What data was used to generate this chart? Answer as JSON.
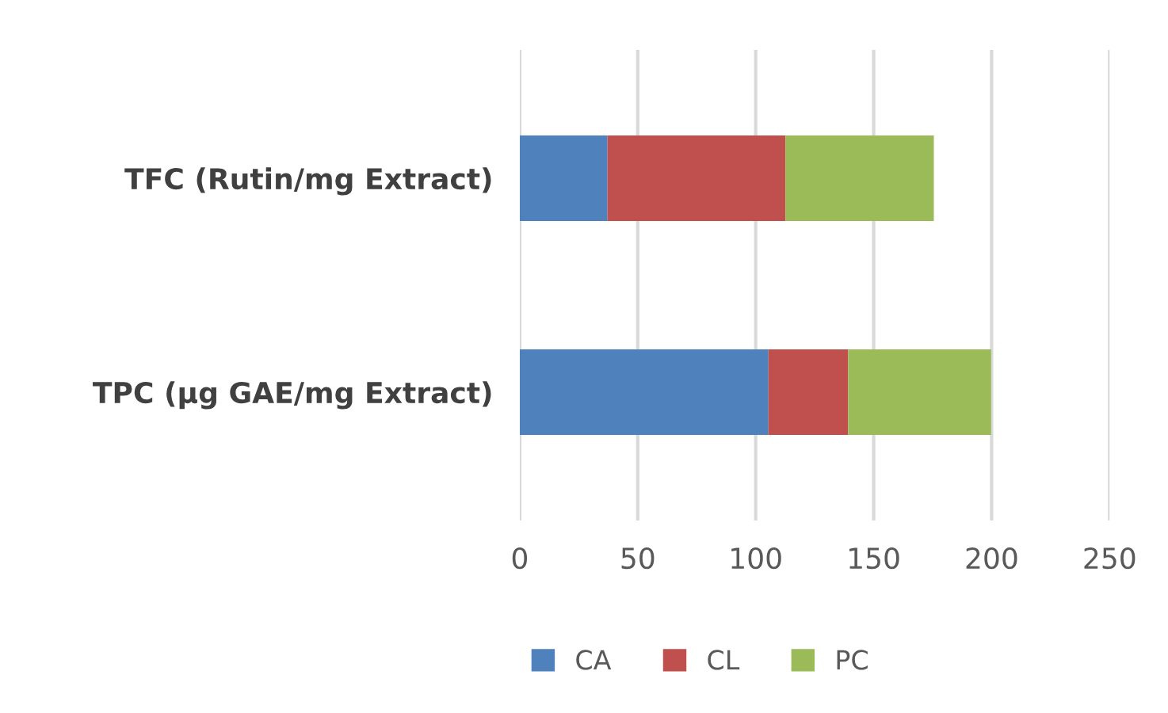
{
  "chart_data": {
    "type": "bar",
    "orientation": "horizontal",
    "stacked": true,
    "categories": [
      "TFC (Rutin/mg Extract)",
      "TPC (µg GAE/mg Extract)"
    ],
    "series": [
      {
        "name": "CA",
        "color": "#4f81bd",
        "values": [
          37.2,
          105.4
        ]
      },
      {
        "name": "CL",
        "color": "#c0504d",
        "values": [
          75.4,
          33.8
        ]
      },
      {
        "name": "PC",
        "color": "#9bbb59",
        "values": [
          62.9,
          60.6
        ]
      }
    ],
    "xlim": [
      0,
      250
    ],
    "xticks": [
      0,
      50,
      100,
      150,
      200,
      250
    ],
    "grid": "x",
    "legend": "bottom"
  }
}
